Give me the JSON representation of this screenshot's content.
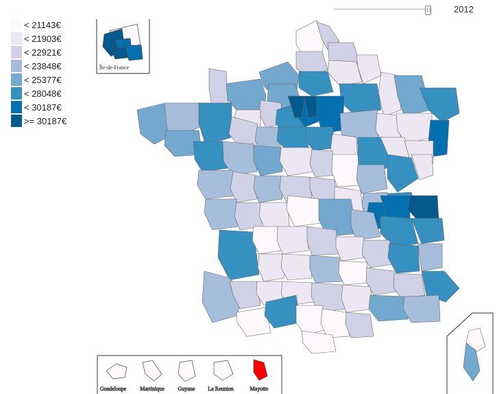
{
  "year_slider": {
    "value": "2012",
    "level": 0.95
  },
  "legend": {
    "items": [
      {
        "label": "< 21143€",
        "color": "#fdf8fb"
      },
      {
        "label": "< 21903€",
        "color": "#ece7f2"
      },
      {
        "label": "< 22921€",
        "color": "#d0d1e6"
      },
      {
        "label": "< 23848€",
        "color": "#a6bddb"
      },
      {
        "label": "< 25377€",
        "color": "#74a9cf"
      },
      {
        "label": "< 28048€",
        "color": "#3690c0"
      },
      {
        "label": "< 30187€",
        "color": "#0570b0"
      },
      {
        "label": ">= 30187€",
        "color": "#045a8d"
      }
    ]
  },
  "insets": {
    "idf_label": "Île-de-France",
    "overseas": [
      {
        "label": "Guadeloupe",
        "color": "#fdf8fb"
      },
      {
        "label": "Martinique",
        "color": "#fdf8fb"
      },
      {
        "label": "Guyane",
        "color": "#fdf8fb"
      },
      {
        "label": "La Reunion",
        "color": "#fdf8fb"
      },
      {
        "label": "Mayotte",
        "color": "#ff0000"
      }
    ]
  }
}
